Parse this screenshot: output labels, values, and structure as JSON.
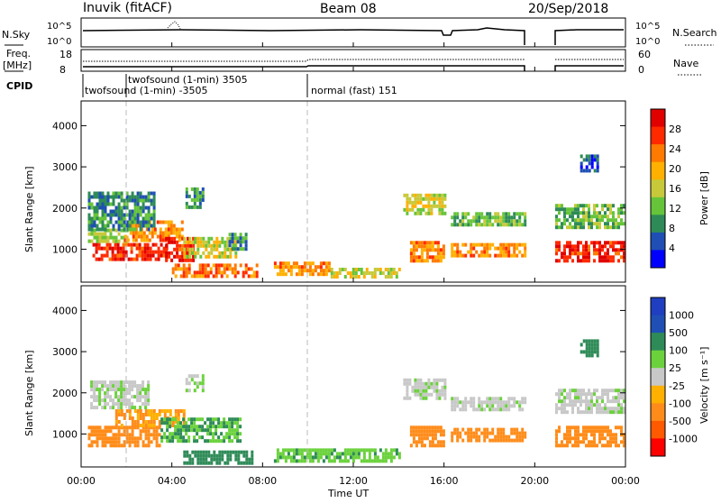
{
  "header": {
    "station": "Inuvik (fitACF)",
    "beam": "Beam 08",
    "date": "20/Sep/2018"
  },
  "top_panels": {
    "nsky_label": "N.Sky",
    "nsky_ticks": [
      "10^5",
      "10^0"
    ],
    "nsearch_label": "N.Search",
    "freq_label_1": "Freq.",
    "freq_label_2": "[MHz]",
    "freq_ticks": [
      "18",
      "8"
    ],
    "nave_ticks": [
      "60",
      "0"
    ],
    "nave_label": "Nave",
    "cpid_label": "CPID",
    "cpid_segments": [
      {
        "text": "twofsound (1-min) -3505"
      },
      {
        "text": "twofsound (1-min) 3505"
      },
      {
        "text": "normal (fast) 151"
      }
    ]
  },
  "axes": {
    "y_label": "Slant Range [km]",
    "y_ticks": [
      "4000",
      "3000",
      "2000",
      "1000"
    ],
    "x_label": "Time UT",
    "x_ticks": [
      "00:00",
      "04:00",
      "08:00",
      "12:00",
      "16:00",
      "20:00",
      "00:00"
    ]
  },
  "colors": {
    "power_scale": [
      "#0000ff",
      "#1f4fb4",
      "#2e8b57",
      "#66c43a",
      "#c7c93a",
      "#ffb000",
      "#ff7a00",
      "#ff2a00",
      "#e00000"
    ],
    "velocity_scale": [
      "#ff0000",
      "#ff5a00",
      "#ff8c1a",
      "#ffb000",
      "#c8c8c8",
      "#6bd23c",
      "#2e8b57",
      "#1f4fb4",
      "#1f3fc0"
    ]
  },
  "chart_data": [
    {
      "type": "heatmap",
      "panel": "power",
      "xlabel": "Time UT",
      "ylabel": "Slant Range [km]",
      "xlim_hours": [
        0,
        24
      ],
      "ylim_km": [
        200,
        4600
      ],
      "colorbar_label": "Power [dB]",
      "colorbar_ticks": [
        "28",
        "24",
        "20",
        "16",
        "12",
        "8",
        "4"
      ],
      "colorbar_range": [
        0,
        32
      ],
      "regions": [
        {
          "t0": 0.5,
          "t1": 3.8,
          "r0": 750,
          "r1": 1150,
          "v": 28
        },
        {
          "t0": 0.3,
          "t1": 2.0,
          "r0": 1150,
          "r1": 1500,
          "v": 14
        },
        {
          "t0": 1.9,
          "t1": 4.5,
          "r0": 1200,
          "r1": 1700,
          "v": 22
        },
        {
          "t0": 3.7,
          "t1": 5.0,
          "r0": 700,
          "r1": 1300,
          "v": 28
        },
        {
          "t0": 4.5,
          "t1": 6.8,
          "r0": 800,
          "r1": 1300,
          "v": 16
        },
        {
          "t0": 6.5,
          "t1": 7.3,
          "r0": 1000,
          "r1": 1400,
          "v": 9
        },
        {
          "t0": 4.0,
          "t1": 7.8,
          "r0": 300,
          "r1": 650,
          "v": 24
        },
        {
          "t0": 0.3,
          "t1": 3.2,
          "r0": 1500,
          "r1": 2400,
          "v": 9
        },
        {
          "t0": 4.6,
          "t1": 5.4,
          "r0": 2050,
          "r1": 2500,
          "v": 10
        },
        {
          "t0": 8.5,
          "t1": 11.0,
          "r0": 400,
          "r1": 700,
          "v": 22
        },
        {
          "t0": 11.0,
          "t1": 14.0,
          "r0": 300,
          "r1": 550,
          "v": 16
        },
        {
          "t0": 14.5,
          "t1": 16.0,
          "r0": 700,
          "r1": 1200,
          "v": 22
        },
        {
          "t0": 14.2,
          "t1": 16.0,
          "r0": 1900,
          "r1": 2350,
          "v": 16
        },
        {
          "t0": 16.3,
          "t1": 19.6,
          "r0": 800,
          "r1": 1150,
          "v": 22
        },
        {
          "t0": 16.3,
          "t1": 19.6,
          "r0": 1550,
          "r1": 1900,
          "v": 12
        },
        {
          "t0": 20.9,
          "t1": 23.9,
          "r0": 700,
          "r1": 1200,
          "v": 28
        },
        {
          "t0": 20.9,
          "t1": 23.9,
          "r0": 1500,
          "r1": 2100,
          "v": 12
        },
        {
          "t0": 22.0,
          "t1": 22.8,
          "r0": 2900,
          "r1": 3300,
          "v": 6
        }
      ]
    },
    {
      "type": "heatmap",
      "panel": "velocity",
      "xlabel": "Time UT",
      "ylabel": "Slant Range [km]",
      "xlim_hours": [
        0,
        24
      ],
      "ylim_km": [
        200,
        4600
      ],
      "colorbar_label": "Velocity [m s⁻¹]",
      "colorbar_ticks": [
        "1000",
        "500",
        "100",
        "25",
        "-25",
        "-100",
        "-500",
        "-1000"
      ],
      "regions": [
        {
          "t0": 0.3,
          "t1": 3.5,
          "r0": 700,
          "r1": 1200,
          "v": -200
        },
        {
          "t0": 1.5,
          "t1": 4.5,
          "r0": 1200,
          "r1": 1600,
          "v": -100
        },
        {
          "t0": 3.5,
          "t1": 7.0,
          "r0": 800,
          "r1": 1400,
          "v": 100
        },
        {
          "t0": 4.5,
          "t1": 7.5,
          "r0": 300,
          "r1": 600,
          "v": 150
        },
        {
          "t0": 0.4,
          "t1": 3.0,
          "r0": 1600,
          "r1": 2300,
          "v": 10
        },
        {
          "t0": 4.6,
          "t1": 5.4,
          "r0": 2050,
          "r1": 2450,
          "v": 10
        },
        {
          "t0": 8.5,
          "t1": 14.0,
          "r0": 300,
          "r1": 650,
          "v": 80
        },
        {
          "t0": 14.5,
          "t1": 16.0,
          "r0": 700,
          "r1": 1200,
          "v": -300
        },
        {
          "t0": 14.2,
          "t1": 16.0,
          "r0": 1900,
          "r1": 2350,
          "v": 5
        },
        {
          "t0": 16.3,
          "t1": 19.6,
          "r0": 800,
          "r1": 1150,
          "v": -300
        },
        {
          "t0": 16.3,
          "t1": 19.6,
          "r0": 1550,
          "r1": 1900,
          "v": 5
        },
        {
          "t0": 20.9,
          "t1": 23.9,
          "r0": 700,
          "r1": 1200,
          "v": -300
        },
        {
          "t0": 20.9,
          "t1": 23.9,
          "r0": 1500,
          "r1": 2100,
          "v": 5
        },
        {
          "t0": 22.0,
          "t1": 22.8,
          "r0": 2900,
          "r1": 3300,
          "v": 200
        }
      ]
    }
  ]
}
